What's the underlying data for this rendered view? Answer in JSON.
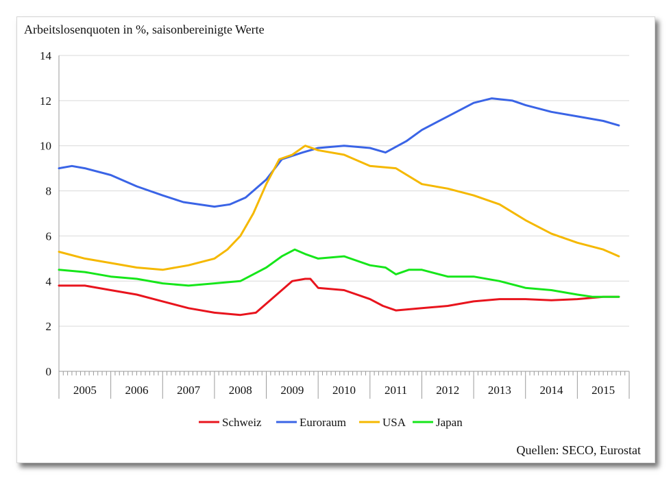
{
  "chart_data": {
    "type": "line",
    "title": "",
    "subtitle": "Arbeitslosenquoten in %, saisonbereinigte Werte",
    "source": "Quellen: SECO, Eurostat",
    "xlabel": "",
    "ylabel": "",
    "ylim": [
      0,
      14
    ],
    "yticks": [
      0,
      2,
      4,
      6,
      8,
      10,
      12,
      14
    ],
    "xlim": [
      2005.0,
      2016.0
    ],
    "year_labels": [
      "2005",
      "2006",
      "2007",
      "2008",
      "2009",
      "2010",
      "2011",
      "2012",
      "2013",
      "2014",
      "2015"
    ],
    "grid": true,
    "legend_position": "bottom",
    "series": [
      {
        "name": "Schweiz",
        "color": "#e8141d",
        "points": [
          [
            2005.0,
            3.8
          ],
          [
            2005.5,
            3.8
          ],
          [
            2006.0,
            3.6
          ],
          [
            2006.5,
            3.4
          ],
          [
            2007.0,
            3.1
          ],
          [
            2007.5,
            2.8
          ],
          [
            2008.0,
            2.6
          ],
          [
            2008.5,
            2.5
          ],
          [
            2008.8,
            2.6
          ],
          [
            2009.0,
            3.0
          ],
          [
            2009.3,
            3.6
          ],
          [
            2009.5,
            4.0
          ],
          [
            2009.75,
            4.1
          ],
          [
            2009.85,
            4.1
          ],
          [
            2010.0,
            3.7
          ],
          [
            2010.5,
            3.6
          ],
          [
            2011.0,
            3.2
          ],
          [
            2011.25,
            2.9
          ],
          [
            2011.5,
            2.7
          ],
          [
            2012.0,
            2.8
          ],
          [
            2012.5,
            2.9
          ],
          [
            2013.0,
            3.1
          ],
          [
            2013.5,
            3.2
          ],
          [
            2014.0,
            3.2
          ],
          [
            2014.5,
            3.15
          ],
          [
            2015.0,
            3.2
          ],
          [
            2015.5,
            3.3
          ],
          [
            2015.8,
            3.3
          ]
        ]
      },
      {
        "name": "Euroraum",
        "color": "#3a64e6",
        "points": [
          [
            2005.0,
            9.0
          ],
          [
            2005.25,
            9.1
          ],
          [
            2005.5,
            9.0
          ],
          [
            2006.0,
            8.7
          ],
          [
            2006.5,
            8.2
          ],
          [
            2007.0,
            7.8
          ],
          [
            2007.4,
            7.5
          ],
          [
            2008.0,
            7.3
          ],
          [
            2008.3,
            7.4
          ],
          [
            2008.6,
            7.7
          ],
          [
            2009.0,
            8.5
          ],
          [
            2009.3,
            9.4
          ],
          [
            2009.7,
            9.7
          ],
          [
            2010.0,
            9.9
          ],
          [
            2010.5,
            10.0
          ],
          [
            2011.0,
            9.9
          ],
          [
            2011.3,
            9.7
          ],
          [
            2011.7,
            10.2
          ],
          [
            2012.0,
            10.7
          ],
          [
            2012.5,
            11.3
          ],
          [
            2013.0,
            11.9
          ],
          [
            2013.35,
            12.1
          ],
          [
            2013.75,
            12.0
          ],
          [
            2014.0,
            11.8
          ],
          [
            2014.5,
            11.5
          ],
          [
            2015.0,
            11.3
          ],
          [
            2015.5,
            11.1
          ],
          [
            2015.8,
            10.9
          ]
        ]
      },
      {
        "name": "USA",
        "color": "#f5b800",
        "points": [
          [
            2005.0,
            5.3
          ],
          [
            2005.5,
            5.0
          ],
          [
            2006.0,
            4.8
          ],
          [
            2006.5,
            4.6
          ],
          [
            2007.0,
            4.5
          ],
          [
            2007.5,
            4.7
          ],
          [
            2008.0,
            5.0
          ],
          [
            2008.25,
            5.4
          ],
          [
            2008.5,
            6.0
          ],
          [
            2008.75,
            7.0
          ],
          [
            2009.0,
            8.3
          ],
          [
            2009.25,
            9.4
          ],
          [
            2009.5,
            9.6
          ],
          [
            2009.75,
            10.0
          ],
          [
            2010.0,
            9.8
          ],
          [
            2010.5,
            9.6
          ],
          [
            2011.0,
            9.1
          ],
          [
            2011.5,
            9.0
          ],
          [
            2012.0,
            8.3
          ],
          [
            2012.5,
            8.1
          ],
          [
            2013.0,
            7.8
          ],
          [
            2013.5,
            7.4
          ],
          [
            2014.0,
            6.7
          ],
          [
            2014.5,
            6.1
          ],
          [
            2015.0,
            5.7
          ],
          [
            2015.5,
            5.4
          ],
          [
            2015.8,
            5.1
          ]
        ]
      },
      {
        "name": "Japan",
        "color": "#16e61a",
        "points": [
          [
            2005.0,
            4.5
          ],
          [
            2005.5,
            4.4
          ],
          [
            2006.0,
            4.2
          ],
          [
            2006.5,
            4.1
          ],
          [
            2007.0,
            3.9
          ],
          [
            2007.5,
            3.8
          ],
          [
            2008.0,
            3.9
          ],
          [
            2008.5,
            4.0
          ],
          [
            2009.0,
            4.6
          ],
          [
            2009.3,
            5.1
          ],
          [
            2009.55,
            5.4
          ],
          [
            2009.75,
            5.2
          ],
          [
            2010.0,
            5.0
          ],
          [
            2010.5,
            5.1
          ],
          [
            2011.0,
            4.7
          ],
          [
            2011.3,
            4.6
          ],
          [
            2011.5,
            4.3
          ],
          [
            2011.75,
            4.5
          ],
          [
            2012.0,
            4.5
          ],
          [
            2012.5,
            4.2
          ],
          [
            2013.0,
            4.2
          ],
          [
            2013.5,
            4.0
          ],
          [
            2014.0,
            3.7
          ],
          [
            2014.5,
            3.6
          ],
          [
            2015.0,
            3.4
          ],
          [
            2015.3,
            3.3
          ],
          [
            2015.6,
            3.3
          ],
          [
            2015.8,
            3.3
          ]
        ]
      }
    ]
  }
}
